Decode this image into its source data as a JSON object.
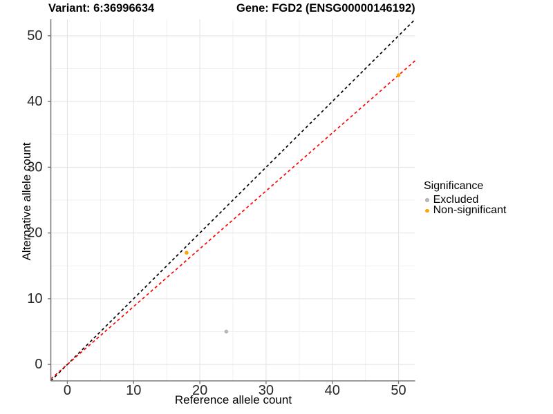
{
  "titles": {
    "variant": "Variant: 6:36996634",
    "gene": "Gene: FGD2 (ENSG00000146192)"
  },
  "chart_data": {
    "type": "scatter",
    "xlabel": "Reference allele count",
    "ylabel": "Alternative allele count",
    "xlim": [
      -2.5,
      52.5
    ],
    "ylim": [
      -2.5,
      52.5
    ],
    "xticks": [
      0,
      10,
      20,
      30,
      40,
      50
    ],
    "yticks": [
      0,
      10,
      20,
      30,
      40,
      50
    ],
    "xticks_minor": [
      5,
      15,
      25,
      35,
      45
    ],
    "yticks_minor": [
      5,
      15,
      25,
      35,
      45
    ],
    "grid": true,
    "series": [
      {
        "name": "Excluded",
        "color": "#b4b4b4",
        "points": [
          [
            24,
            5
          ]
        ]
      },
      {
        "name": "Non-significant",
        "color": "#ffa500",
        "points": [
          [
            18,
            17
          ],
          [
            50,
            44
          ]
        ]
      }
    ],
    "lines": [
      {
        "name": "identity-line",
        "slope": 1,
        "intercept": 0,
        "color": "#000000",
        "style": "dashed"
      },
      {
        "name": "fitted-ratio-line",
        "slope": 0.88,
        "intercept": 0,
        "color": "#ff0000",
        "style": "dashed"
      }
    ],
    "legend": {
      "title": "Significance",
      "position": "right",
      "items": [
        {
          "label": "Excluded",
          "color": "#b4b4b4"
        },
        {
          "label": "Non-significant",
          "color": "#ffa500"
        }
      ]
    },
    "style": {
      "axis_color": "#7a7a7a",
      "grid_major_color": "#e5e5e5",
      "grid_minor_color": "#f1f1f1",
      "tick_label_color": "#262626",
      "background": "#ffffff"
    }
  }
}
